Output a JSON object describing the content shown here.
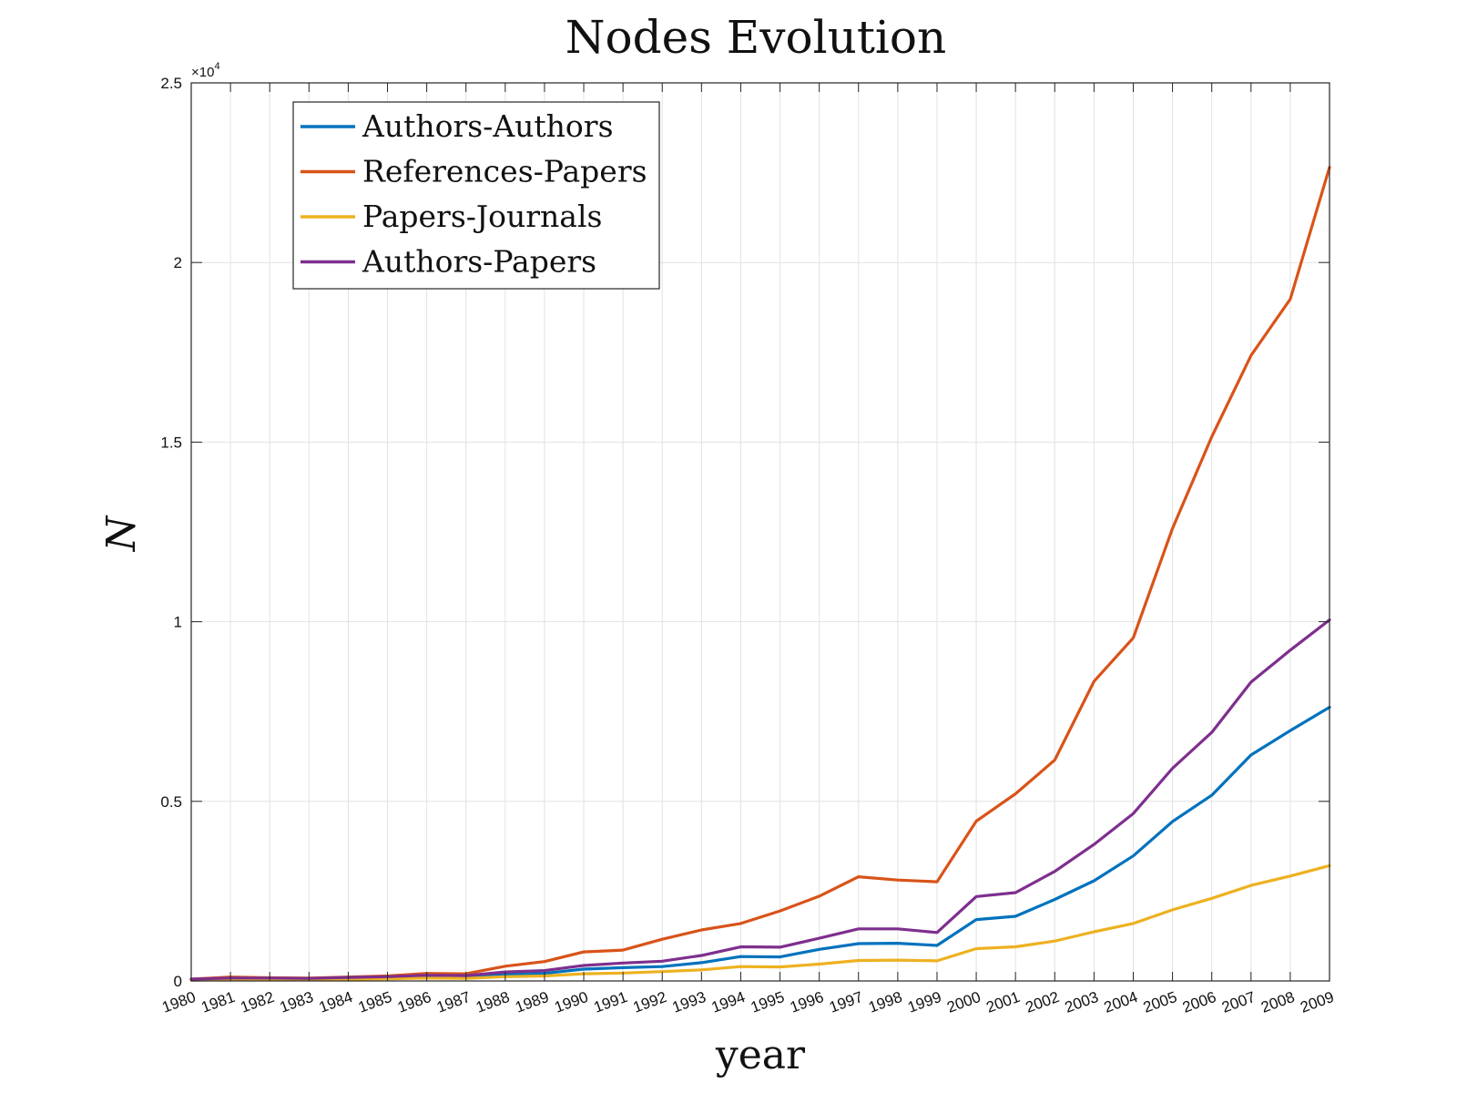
{
  "chart_data": {
    "type": "line",
    "title": "Nodes Evolution",
    "xlabel": "year",
    "ylabel": "N",
    "y_multiplier": "×10",
    "y_multiplier_exponent": "4",
    "x": [
      1980,
      1981,
      1982,
      1983,
      1984,
      1985,
      1986,
      1987,
      1988,
      1989,
      1990,
      1991,
      1992,
      1993,
      1994,
      1995,
      1996,
      1997,
      1998,
      1999,
      2000,
      2001,
      2002,
      2003,
      2004,
      2005,
      2006,
      2007,
      2008,
      2009
    ],
    "x_tick_labels": [
      "1980",
      "1981",
      "1982",
      "1983",
      "1984",
      "1985",
      "1986",
      "1987",
      "1988",
      "1989",
      "1990",
      "1991",
      "1992",
      "1993",
      "1994",
      "1995",
      "1996",
      "1997",
      "1998",
      "1999",
      "2000",
      "2001",
      "2002",
      "2003",
      "2004",
      "2005",
      "2006",
      "2007",
      "2008",
      "2009"
    ],
    "ylim": [
      0,
      25000
    ],
    "y_ticks": [
      0,
      5000,
      10000,
      15000,
      20000,
      25000
    ],
    "y_tick_labels": [
      "0",
      "0.5",
      "1",
      "1.5",
      "2",
      "2.5"
    ],
    "grid": true,
    "legend_position": "top-left",
    "series": [
      {
        "name": "Authors-Authors",
        "color": "#0072BD",
        "values": [
          40,
          70,
          60,
          60,
          80,
          90,
          110,
          100,
          180,
          210,
          330,
          370,
          400,
          510,
          680,
          670,
          880,
          1040,
          1050,
          990,
          1710,
          1800,
          2270,
          2790,
          3480,
          4440,
          5170,
          6290,
          6970,
          7620
        ]
      },
      {
        "name": "References-Papers",
        "color": "#D95319",
        "values": [
          50,
          110,
          90,
          80,
          110,
          140,
          210,
          200,
          410,
          540,
          810,
          860,
          1160,
          1420,
          1600,
          1950,
          2360,
          2900,
          2810,
          2760,
          4450,
          5210,
          6150,
          8340,
          9550,
          12600,
          15150,
          17410,
          18980,
          22650
        ]
      },
      {
        "name": "Papers-Journals",
        "color": "#EDB120",
        "values": [
          20,
          40,
          40,
          40,
          50,
          60,
          80,
          70,
          120,
          140,
          200,
          220,
          260,
          310,
          400,
          390,
          470,
          570,
          580,
          560,
          900,
          950,
          1110,
          1370,
          1600,
          1980,
          2300,
          2660,
          2920,
          3210
        ]
      },
      {
        "name": "Authors-Papers",
        "color": "#7E2F8E",
        "values": [
          50,
          80,
          80,
          70,
          100,
          120,
          160,
          150,
          250,
          290,
          430,
          500,
          550,
          710,
          950,
          940,
          1190,
          1450,
          1450,
          1350,
          2350,
          2460,
          3050,
          3800,
          4660,
          5920,
          6920,
          8320,
          9210,
          10050
        ]
      }
    ]
  }
}
